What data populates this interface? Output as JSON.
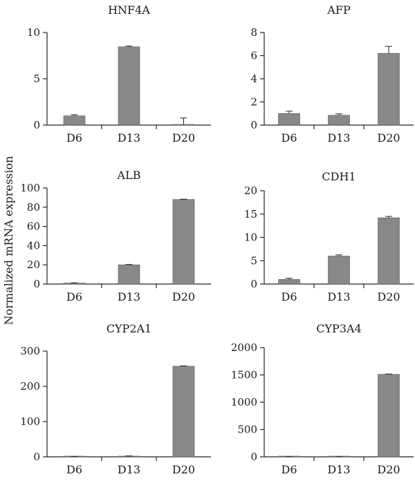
{
  "figure": {
    "ylabel": "Normalized mRNA expression",
    "bar_color": "#888888",
    "axis_color": "#222222"
  },
  "chart_data": [
    {
      "type": "bar",
      "title": "HNF4A",
      "categories": [
        "D6",
        "D13",
        "D20"
      ],
      "values": [
        1.0,
        8.45,
        0.05
      ],
      "errors": [
        0.12,
        0.08,
        0.72
      ],
      "ylim": [
        0,
        10
      ],
      "yticks": [
        0,
        5,
        10
      ]
    },
    {
      "type": "bar",
      "title": "AFP",
      "categories": [
        "D6",
        "D13",
        "D20"
      ],
      "values": [
        1.0,
        0.85,
        6.2
      ],
      "errors": [
        0.2,
        0.12,
        0.6
      ],
      "ylim": [
        0,
        8
      ],
      "yticks": [
        0,
        2,
        4,
        6,
        8
      ]
    },
    {
      "type": "bar",
      "title": "ALB",
      "categories": [
        "D6",
        "D13",
        "D20"
      ],
      "values": [
        1.0,
        20.0,
        88.0
      ],
      "errors": [
        0.3,
        0.4,
        0.4
      ],
      "ylim": [
        0,
        100
      ],
      "yticks": [
        0,
        20,
        40,
        60,
        80,
        100
      ]
    },
    {
      "type": "bar",
      "title": "CDH1",
      "categories": [
        "D6",
        "D13",
        "D20"
      ],
      "values": [
        1.0,
        6.0,
        14.2
      ],
      "errors": [
        0.25,
        0.25,
        0.3
      ],
      "ylim": [
        0,
        20
      ],
      "yticks": [
        0,
        5,
        10,
        15,
        20
      ]
    },
    {
      "type": "bar",
      "title": "CYP2A1",
      "categories": [
        "D6",
        "D13",
        "D20"
      ],
      "values": [
        1.0,
        2.0,
        257.0
      ],
      "errors": [
        0.3,
        0.6,
        1.0
      ],
      "ylim": [
        0,
        300
      ],
      "yticks": [
        0,
        100,
        200,
        300
      ]
    },
    {
      "type": "bar",
      "title": "CYP3A4",
      "categories": [
        "D6",
        "D13",
        "D20"
      ],
      "values": [
        1.0,
        1.0,
        1510.0
      ],
      "errors": [
        0.2,
        0.2,
        6.0
      ],
      "ylim": [
        0,
        2000
      ],
      "yticks": [
        0,
        500,
        1000,
        1500,
        2000
      ]
    }
  ]
}
